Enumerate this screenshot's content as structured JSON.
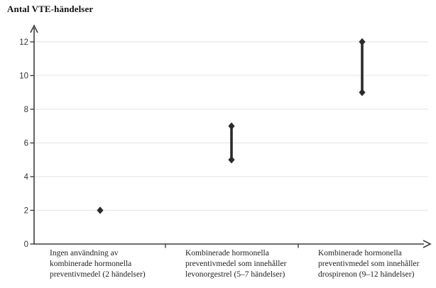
{
  "chart_data": {
    "type": "scatter",
    "subtype": "range-dumbbell",
    "title": "Antal VTE-händelser",
    "ylabel": "Antal VTE-händelser",
    "xlabel": "",
    "ylim": [
      0,
      12
    ],
    "yticks": [
      0,
      2,
      4,
      6,
      8,
      10,
      12
    ],
    "grid": "horizontal-light",
    "legend": "none",
    "marker": "diamond",
    "categories": [
      {
        "label": "Ingen användning av kombinerade hormonella preventivmedel (2 händelser)",
        "label_lines": [
          "Ingen användning av",
          "kombinerade hormonella",
          "preventivmedel (2 händelser)"
        ],
        "low": 2,
        "high": 2
      },
      {
        "label": "Kombinerade hormonella preventivmedel som innehåller levonorgestrel (5–7 händelser)",
        "label_lines": [
          "Kombinerade hormonella",
          "preventivmedel som innehåller",
          "levonorgestrel (5–7 händelser)"
        ],
        "low": 5,
        "high": 7
      },
      {
        "label": "Kombinerade hormonella preventivmedel som innehåller drospirenon (9–12 händelser)",
        "label_lines": [
          "Kombinerade hormonella",
          "preventivmedel som innehåller",
          "drospirenon (9–12 händelser)"
        ],
        "low": 9,
        "high": 12
      }
    ],
    "colors": {
      "marker": "#2b2b2b",
      "axis": "#3d3d3d",
      "grid": "#ececec",
      "tick_text": "#333333"
    }
  }
}
